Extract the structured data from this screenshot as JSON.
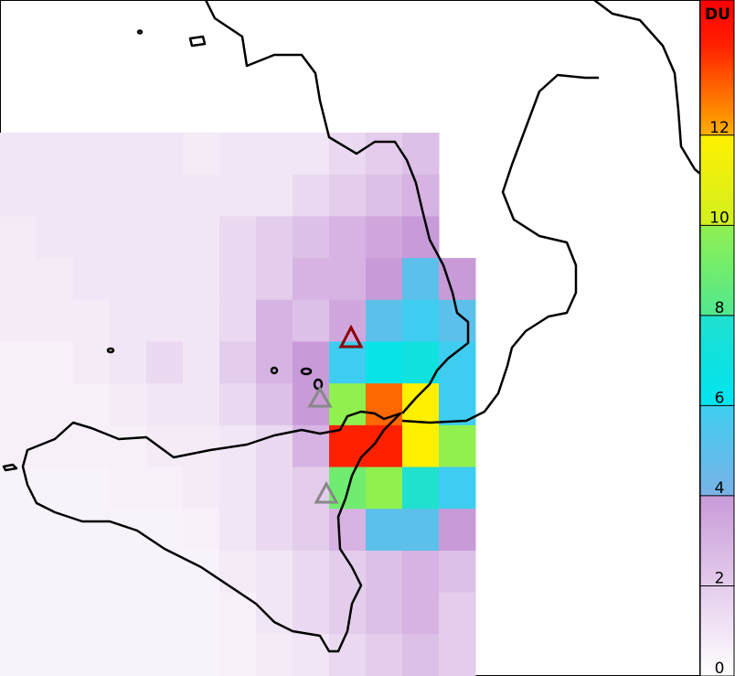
{
  "map": {
    "colorbar_label": "DU",
    "clim": [
      0,
      15
    ],
    "ticks": [
      0,
      2,
      4,
      6,
      8,
      10,
      12
    ],
    "colormap": [
      [
        0,
        "#ffffff"
      ],
      [
        4,
        "#c89ad8"
      ],
      [
        4,
        "#7ab2e6"
      ],
      [
        6,
        "#3ecdf0"
      ],
      [
        6,
        "#00e4f0"
      ],
      [
        8,
        "#20e0d0"
      ],
      [
        8,
        "#50e890"
      ],
      [
        10,
        "#90f050"
      ],
      [
        10,
        "#d0f020"
      ],
      [
        12,
        "#fff000"
      ],
      [
        12,
        "#ffb000"
      ],
      [
        14,
        "#ff2000"
      ],
      [
        15,
        "#ff0000"
      ]
    ],
    "grid": [
      [
        1,
        1,
        1,
        1,
        1,
        0.8,
        1,
        1,
        1,
        1.5,
        2,
        2.5,
        null
      ],
      [
        1,
        1,
        1,
        1,
        1,
        1,
        1,
        1,
        1.5,
        2,
        2.5,
        3,
        null
      ],
      [
        0.8,
        1,
        1,
        1,
        1,
        1,
        1.5,
        2,
        2.5,
        3,
        3.5,
        4,
        null
      ],
      [
        0.8,
        0.8,
        1,
        1,
        1,
        1,
        1.5,
        2,
        3,
        3,
        4,
        5,
        4
      ],
      [
        0.8,
        0.8,
        0.8,
        1,
        1,
        1,
        1.5,
        3,
        2.5,
        3.5,
        5,
        6,
        5
      ],
      [
        0.6,
        0.6,
        0.8,
        1,
        1.5,
        1,
        2,
        3,
        4,
        6,
        6.5,
        7,
        6
      ],
      [
        0.6,
        0.6,
        0.6,
        0.8,
        1,
        1,
        1.5,
        2.5,
        4,
        10,
        13,
        12,
        6
      ],
      [
        0.6,
        0.6,
        0.6,
        0.6,
        0.8,
        0.8,
        1,
        1.5,
        3,
        14,
        14,
        12,
        10
      ],
      [
        0.5,
        0.5,
        0.5,
        0.6,
        0.6,
        0.8,
        1,
        1.5,
        2,
        9,
        10,
        8,
        6
      ],
      [
        0.5,
        0.5,
        0.5,
        0.5,
        0.5,
        0.6,
        1,
        1.5,
        2,
        3,
        5,
        5,
        4
      ],
      [
        0.5,
        0.5,
        0.5,
        0.5,
        0.5,
        0.5,
        0.8,
        1,
        1.5,
        2,
        2.5,
        3,
        2.5
      ],
      [
        0.5,
        0.5,
        0.5,
        0.5,
        0.5,
        0.5,
        0.6,
        1,
        1.5,
        2,
        2.5,
        3,
        2
      ],
      [
        0.5,
        0.5,
        0.5,
        0.5,
        0.5,
        0.5,
        0.6,
        0.8,
        1,
        1.5,
        2,
        2.5,
        2
      ]
    ]
  }
}
